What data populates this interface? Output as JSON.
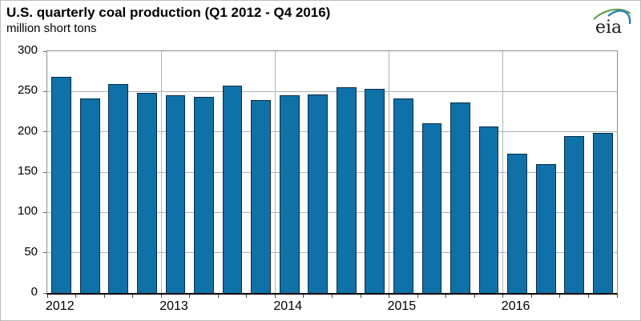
{
  "header": {
    "title": "U.S. quarterly coal production (Q1 2012 - Q4 2016)",
    "units_label": "million short tons",
    "logo_text": "eia",
    "logo_green": "#5f9f3e",
    "logo_blue": "#2a7db6"
  },
  "chart_data": {
    "type": "bar",
    "title": "U.S. quarterly coal production (Q1 2012 - Q4 2016)",
    "ylabel": "million short tons",
    "x": [
      "Q1 2012",
      "Q2 2012",
      "Q3 2012",
      "Q4 2012",
      "Q1 2013",
      "Q2 2013",
      "Q3 2013",
      "Q4 2013",
      "Q1 2014",
      "Q2 2014",
      "Q3 2014",
      "Q4 2014",
      "Q1 2015",
      "Q2 2015",
      "Q3 2015",
      "Q4 2015",
      "Q1 2016",
      "Q2 2016",
      "Q3 2016",
      "Q4 2016"
    ],
    "values": [
      268,
      241,
      259,
      248,
      245,
      243,
      257,
      239,
      245,
      246,
      255,
      253,
      241,
      211,
      236,
      207,
      173,
      160,
      195,
      199
    ],
    "ylim": [
      0,
      300
    ],
    "yticks": [
      0,
      50,
      100,
      150,
      200,
      250,
      300
    ],
    "year_labels": [
      "2012",
      "2013",
      "2014",
      "2015",
      "2016"
    ],
    "quarters_per_year": 4,
    "grid": true,
    "legend": "none",
    "bar_color": "#0f71a7",
    "bar_border_color": "#082d49",
    "gridline_color": "#b3b3b3",
    "plot_border_color": "#8e8e8e",
    "axis_color": "#000000"
  }
}
